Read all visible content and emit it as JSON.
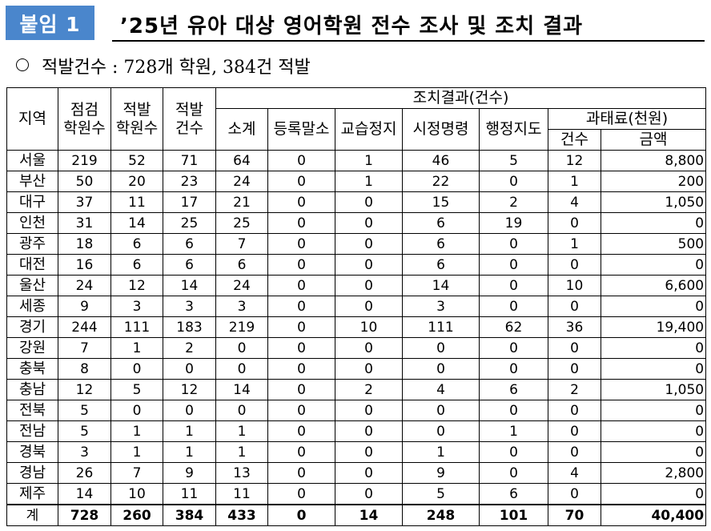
{
  "badge": "붙임 1",
  "title": "’25년 유아 대상 영어학원 전수 조사 및 조치 결과",
  "summary": "적발건수 : 728개 학원, 384건 적발",
  "headers": {
    "region": "지역",
    "inspected": [
      "점검",
      "학원수"
    ],
    "violating": [
      "적발",
      "학원수"
    ],
    "cases": [
      "적발",
      "건수"
    ],
    "measures": "조치결과(건수)",
    "subtotal": "소계",
    "deregistration": "등록말소",
    "suspension": "교습정지",
    "correction": "시정명령",
    "guidance": "행정지도",
    "fines": "과태료(천원)",
    "fine_count": "건수",
    "fine_amount": "금액"
  },
  "rows": [
    [
      "서울",
      "219",
      "52",
      "71",
      "64",
      "0",
      "1",
      "46",
      "5",
      "12",
      "8,800"
    ],
    [
      "부산",
      "50",
      "20",
      "23",
      "24",
      "0",
      "1",
      "22",
      "0",
      "1",
      "200"
    ],
    [
      "대구",
      "37",
      "11",
      "17",
      "21",
      "0",
      "0",
      "15",
      "2",
      "4",
      "1,050"
    ],
    [
      "인천",
      "31",
      "14",
      "25",
      "25",
      "0",
      "0",
      "6",
      "19",
      "0",
      "0"
    ],
    [
      "광주",
      "18",
      "6",
      "6",
      "7",
      "0",
      "0",
      "6",
      "0",
      "1",
      "500"
    ],
    [
      "대전",
      "16",
      "6",
      "6",
      "6",
      "0",
      "0",
      "6",
      "0",
      "0",
      "0"
    ],
    [
      "울산",
      "24",
      "12",
      "14",
      "24",
      "0",
      "0",
      "14",
      "0",
      "10",
      "6,600"
    ],
    [
      "세종",
      "9",
      "3",
      "3",
      "3",
      "0",
      "0",
      "3",
      "0",
      "0",
      "0"
    ],
    [
      "경기",
      "244",
      "111",
      "183",
      "219",
      "0",
      "10",
      "111",
      "62",
      "36",
      "19,400"
    ],
    [
      "강원",
      "7",
      "1",
      "2",
      "0",
      "0",
      "0",
      "0",
      "0",
      "0",
      "0"
    ],
    [
      "충북",
      "8",
      "0",
      "0",
      "0",
      "0",
      "0",
      "0",
      "0",
      "0",
      "0"
    ],
    [
      "충남",
      "12",
      "5",
      "12",
      "14",
      "0",
      "2",
      "4",
      "6",
      "2",
      "1,050"
    ],
    [
      "전북",
      "5",
      "0",
      "0",
      "0",
      "0",
      "0",
      "0",
      "0",
      "0",
      "0"
    ],
    [
      "전남",
      "5",
      "1",
      "1",
      "1",
      "0",
      "0",
      "0",
      "1",
      "0",
      "0"
    ],
    [
      "경북",
      "3",
      "1",
      "1",
      "1",
      "0",
      "0",
      "1",
      "0",
      "0",
      "0"
    ],
    [
      "경남",
      "26",
      "7",
      "9",
      "13",
      "0",
      "0",
      "9",
      "0",
      "4",
      "2,800"
    ],
    [
      "제주",
      "14",
      "10",
      "11",
      "11",
      "0",
      "0",
      "5",
      "6",
      "0",
      "0"
    ]
  ],
  "total": [
    "계",
    "728",
    "260",
    "384",
    "433",
    "0",
    "14",
    "248",
    "101",
    "70",
    "40,400"
  ],
  "colors": {
    "badge_bg": "#4a86cc",
    "badge_text": "#ffffff"
  }
}
